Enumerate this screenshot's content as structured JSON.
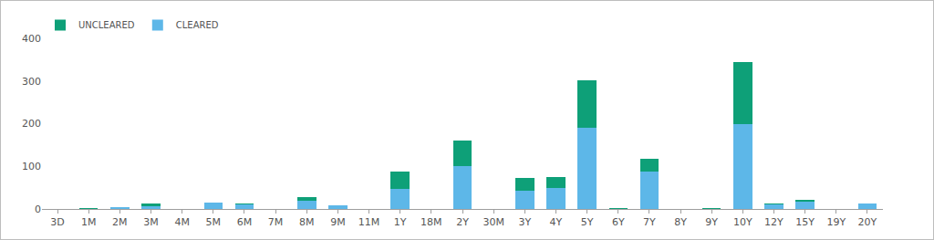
{
  "chart_data": {
    "type": "bar",
    "categories": [
      "3D",
      "1M",
      "2M",
      "3M",
      "4M",
      "5M",
      "6M",
      "7M",
      "8M",
      "9M",
      "11M",
      "1Y",
      "18M",
      "2Y",
      "30M",
      "3Y",
      "4Y",
      "5Y",
      "6Y",
      "7Y",
      "8Y",
      "9Y",
      "10Y",
      "12Y",
      "15Y",
      "19Y",
      "20Y"
    ],
    "series": [
      {
        "name": "CLEARED",
        "color": "#5db7e8",
        "values": [
          0,
          1,
          5,
          7,
          0,
          14,
          10,
          0,
          19,
          8,
          0,
          47,
          0,
          100,
          0,
          42,
          49,
          190,
          1,
          87,
          0,
          1,
          200,
          10,
          17,
          0,
          12
        ]
      },
      {
        "name": "UNCLEARED",
        "color": "#0ea078",
        "values": [
          0,
          1,
          0,
          6,
          0,
          2,
          2,
          0,
          9,
          1,
          0,
          41,
          0,
          60,
          0,
          30,
          25,
          112,
          1,
          30,
          0,
          1,
          145,
          3,
          5,
          0,
          1
        ]
      }
    ],
    "ylim": [
      0,
      400
    ],
    "yticks": [
      0,
      100,
      200,
      300,
      400
    ],
    "stacked": true,
    "grid": false,
    "legend": "top-left"
  }
}
